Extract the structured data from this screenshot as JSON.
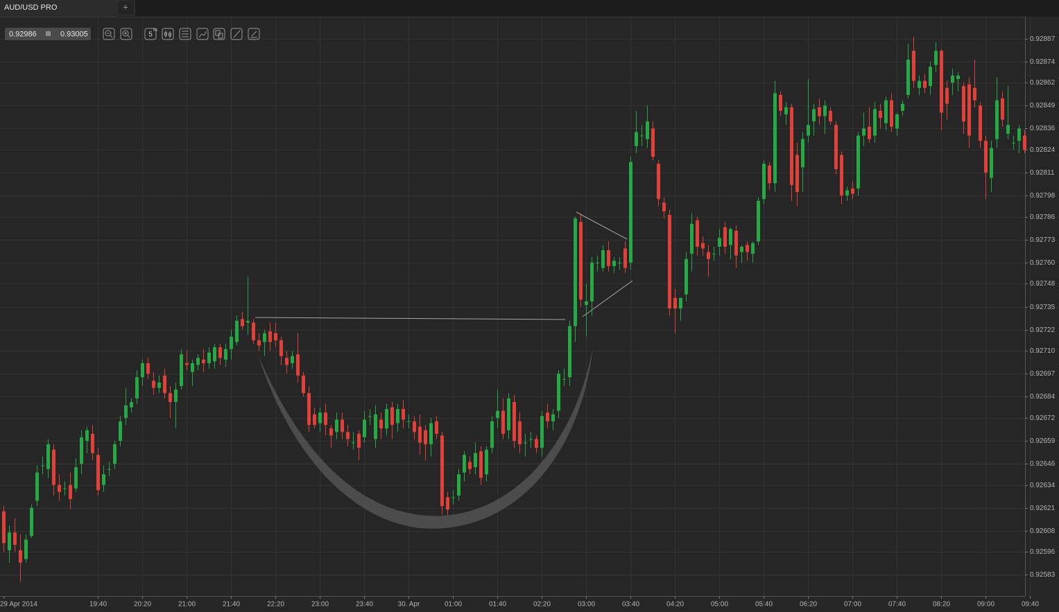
{
  "ui": {
    "tab": "AUD/USD PRO",
    "new_tab": "+",
    "bid": "0.92986",
    "ask": "0.93005",
    "interval": "5",
    "interval_unit": "m"
  },
  "chart_data": {
    "type": "candlestick",
    "up_color": "#27a844",
    "down_color": "#e0423a",
    "grid": true,
    "ylim": [
      0.92571,
      0.92899
    ],
    "yticks": [
      0.92887,
      0.92874,
      0.92862,
      0.92849,
      0.92836,
      0.92824,
      0.92811,
      0.92798,
      0.92786,
      0.92773,
      {
        "value": 0.9276,
        "label": "0.92760"
      },
      0.92748,
      0.92735,
      0.92722,
      {
        "value": 0.9271,
        "label": "0.92710"
      },
      0.92697,
      0.92684,
      0.92672,
      0.92659,
      0.92646,
      0.92634,
      0.92621,
      0.92608,
      0.92596,
      0.92583
    ],
    "categories": [
      "29 Apr 2014",
      null,
      null,
      null,
      null,
      null,
      null,
      null,
      null,
      null,
      null,
      null,
      null,
      null,
      null,
      null,
      null,
      "19:40",
      null,
      null,
      null,
      null,
      null,
      null,
      null,
      "20:20",
      null,
      null,
      null,
      null,
      null,
      null,
      null,
      "21:00",
      null,
      null,
      null,
      null,
      null,
      null,
      null,
      "21:40",
      null,
      null,
      null,
      null,
      null,
      null,
      null,
      "22:20",
      null,
      null,
      null,
      null,
      null,
      null,
      null,
      "23:00",
      null,
      null,
      null,
      null,
      null,
      null,
      null,
      "23:40",
      null,
      null,
      null,
      null,
      null,
      null,
      null,
      "30. Apr",
      null,
      null,
      null,
      null,
      null,
      null,
      null,
      "01:00",
      null,
      null,
      null,
      null,
      null,
      null,
      null,
      "01:40",
      null,
      null,
      null,
      null,
      null,
      null,
      null,
      "02:20",
      null,
      null,
      null,
      null,
      null,
      null,
      null,
      "03:00",
      null,
      null,
      null,
      null,
      null,
      null,
      null,
      "03:40",
      null,
      null,
      null,
      null,
      null,
      null,
      null,
      "04:20",
      null,
      null,
      null,
      null,
      null,
      null,
      null,
      "05:00",
      null,
      null,
      null,
      null,
      null,
      null,
      null,
      "05:40",
      null,
      null,
      null,
      null,
      null,
      null,
      null,
      "06:20",
      null,
      null,
      null,
      null,
      null,
      null,
      null,
      "07:00",
      null,
      null,
      null,
      null,
      null,
      null,
      null,
      "07:40",
      null,
      null,
      null,
      null,
      null,
      null,
      null,
      "08:20",
      null,
      null,
      null,
      null,
      null,
      null,
      null,
      "09:00",
      null,
      null,
      null,
      null,
      null,
      null,
      null,
      "09:40"
    ],
    "candles": [
      [
        0.92619,
        0.92622,
        0.92596,
        0.92601
      ],
      [
        0.92597,
        0.92611,
        0.9259,
        0.92607
      ],
      [
        0.92607,
        0.92615,
        0.92596,
        0.926
      ],
      [
        0.92597,
        0.92606,
        0.92579,
        0.9259
      ],
      [
        0.92592,
        0.92606,
        0.9259,
        0.92603
      ],
      [
        0.92605,
        0.92623,
        0.92604,
        0.92621
      ],
      [
        0.92625,
        0.92645,
        0.92622,
        0.92641
      ],
      [
        0.92645,
        0.9265,
        0.9264,
        0.92645
      ],
      [
        0.92643,
        0.9266,
        0.92638,
        0.92657
      ],
      [
        0.92654,
        0.92657,
        0.92628,
        0.92634
      ],
      [
        0.92634,
        0.9264,
        0.92625,
        0.9263
      ],
      [
        0.92632,
        0.92636,
        0.92628,
        0.92632
      ],
      [
        0.92634,
        0.92641,
        0.9262,
        0.92626
      ],
      [
        0.92632,
        0.92649,
        0.9263,
        0.92644
      ],
      [
        0.92646,
        0.92665,
        0.9264,
        0.92661
      ],
      [
        0.92659,
        0.92667,
        0.92652,
        0.92665
      ],
      [
        0.92663,
        0.92668,
        0.92648,
        0.92652
      ],
      [
        0.92651,
        0.92655,
        0.92628,
        0.92631
      ],
      [
        0.92634,
        0.92645,
        0.9263,
        0.9264
      ],
      [
        0.92643,
        0.92647,
        0.92639,
        0.92643
      ],
      [
        0.92646,
        0.92659,
        0.92643,
        0.92657
      ],
      [
        0.92659,
        0.92673,
        0.92656,
        0.9267
      ],
      [
        0.92672,
        0.92689,
        0.92668,
        0.92679
      ],
      [
        0.92678,
        0.92683,
        0.92675,
        0.92681
      ],
      [
        0.92683,
        0.92699,
        0.9268,
        0.92695
      ],
      [
        0.92695,
        0.92705,
        0.9269,
        0.92703
      ],
      [
        0.92703,
        0.92706,
        0.92694,
        0.92697
      ],
      [
        0.92693,
        0.92698,
        0.92685,
        0.92689
      ],
      [
        0.92689,
        0.92696,
        0.92686,
        0.92692
      ],
      [
        0.92696,
        0.927,
        0.92683,
        0.92686
      ],
      [
        0.92686,
        0.9269,
        0.92672,
        0.92681
      ],
      [
        0.92681,
        0.92692,
        0.92666,
        0.92688
      ],
      [
        0.9269,
        0.92711,
        0.92688,
        0.92708
      ],
      [
        0.92703,
        0.9271,
        0.92699,
        0.92702
      ],
      [
        0.92698,
        0.92705,
        0.9269,
        0.92703
      ],
      [
        0.92702,
        0.92708,
        0.92699,
        0.92706
      ],
      [
        0.92705,
        0.92711,
        0.92698,
        0.92703
      ],
      [
        0.92703,
        0.92712,
        0.927,
        0.92709
      ],
      [
        0.92704,
        0.92714,
        0.927,
        0.92712
      ],
      [
        0.92712,
        0.92714,
        0.92702,
        0.92706
      ],
      [
        0.92705,
        0.92714,
        0.92701,
        0.92711
      ],
      [
        0.92711,
        0.92722,
        0.92705,
        0.92718
      ],
      [
        0.92715,
        0.9273,
        0.92713,
        0.92727
      ],
      [
        0.92728,
        0.92732,
        0.92722,
        0.92724
      ],
      [
        0.92726,
        0.92752,
        0.92719,
        0.92727
      ],
      [
        0.92726,
        0.92728,
        0.92714,
        0.92716
      ],
      [
        0.92716,
        0.9272,
        0.9271,
        0.92713
      ],
      [
        0.92715,
        0.92722,
        0.92707,
        0.9272
      ],
      [
        0.92721,
        0.92726,
        0.9271,
        0.92715
      ],
      [
        0.9272,
        0.92726,
        0.92712,
        0.92716
      ],
      [
        0.92716,
        0.92718,
        0.92702,
        0.92707
      ],
      [
        0.92706,
        0.9271,
        0.92697,
        0.92702
      ],
      [
        0.92703,
        0.9271,
        0.927,
        0.92707
      ],
      [
        0.92708,
        0.9272,
        0.92692,
        0.92696
      ],
      [
        0.92696,
        0.92698,
        0.92684,
        0.92686
      ],
      [
        0.92686,
        0.9269,
        0.92664,
        0.92668
      ],
      [
        0.92674,
        0.92678,
        0.92666,
        0.92668
      ],
      [
        0.92669,
        0.92678,
        0.92664,
        0.92675
      ],
      [
        0.92675,
        0.9268,
        0.92662,
        0.92668
      ],
      [
        0.92666,
        0.92668,
        0.92655,
        0.92662
      ],
      [
        0.92664,
        0.92675,
        0.9266,
        0.92671
      ],
      [
        0.92671,
        0.92675,
        0.9266,
        0.92664
      ],
      [
        0.92664,
        0.92668,
        0.92656,
        0.9266
      ],
      [
        0.92658,
        0.92664,
        0.92654,
        0.92658
      ],
      [
        0.92663,
        0.92665,
        0.92648,
        0.92655
      ],
      [
        0.92661,
        0.92676,
        0.92658,
        0.92671
      ],
      [
        0.92673,
        0.92677,
        0.92668,
        0.92673
      ],
      [
        0.9266,
        0.92679,
        0.92655,
        0.92674
      ],
      [
        0.92671,
        0.92675,
        0.9266,
        0.92666
      ],
      [
        0.92666,
        0.9268,
        0.92662,
        0.92677
      ],
      [
        0.92678,
        0.92681,
        0.9266,
        0.92668
      ],
      [
        0.92669,
        0.9268,
        0.92664,
        0.92677
      ],
      [
        0.92677,
        0.92682,
        0.92666,
        0.92671
      ],
      [
        0.9267,
        0.92674,
        0.92666,
        0.9267
      ],
      [
        0.9267,
        0.92673,
        0.9266,
        0.92664
      ],
      [
        0.92667,
        0.92674,
        0.92651,
        0.92658
      ],
      [
        0.92665,
        0.92668,
        0.92648,
        0.92657
      ],
      [
        0.92657,
        0.92672,
        0.9265,
        0.92669
      ],
      [
        0.9267,
        0.92673,
        0.9266,
        0.92663
      ],
      [
        0.92662,
        0.92664,
        0.92617,
        0.92622
      ],
      [
        0.92627,
        0.9263,
        0.92617,
        0.9262
      ],
      [
        0.92627,
        0.92631,
        0.92623,
        0.92627
      ],
      [
        0.92628,
        0.92643,
        0.92625,
        0.9264
      ],
      [
        0.92641,
        0.92653,
        0.92636,
        0.92651
      ],
      [
        0.92647,
        0.9265,
        0.9264,
        0.92643
      ],
      [
        0.92644,
        0.92658,
        0.9264,
        0.92652
      ],
      [
        0.92653,
        0.92656,
        0.92634,
        0.92638
      ],
      [
        0.9264,
        0.92656,
        0.92636,
        0.92654
      ],
      [
        0.92655,
        0.92673,
        0.92652,
        0.9267
      ],
      [
        0.92672,
        0.92688,
        0.92666,
        0.92676
      ],
      [
        0.92676,
        0.92683,
        0.9266,
        0.92663
      ],
      [
        0.92665,
        0.92686,
        0.9266,
        0.92683
      ],
      [
        0.92681,
        0.92685,
        0.92655,
        0.92659
      ],
      [
        0.9267,
        0.92675,
        0.92652,
        0.92657
      ],
      [
        0.92658,
        0.92663,
        0.9265,
        0.92658
      ],
      [
        0.9266,
        0.92664,
        0.92655,
        0.9266
      ],
      [
        0.9266,
        0.92662,
        0.92652,
        0.92655
      ],
      [
        0.92655,
        0.92676,
        0.9265,
        0.92673
      ],
      [
        0.92675,
        0.9268,
        0.92666,
        0.9267
      ],
      [
        0.9267,
        0.92677,
        0.92665,
        0.92674
      ],
      [
        0.92676,
        0.92699,
        0.92672,
        0.92697
      ],
      [
        0.92694,
        0.927,
        0.9269,
        0.92694
      ],
      [
        0.92695,
        0.92727,
        0.9269,
        0.92724
      ],
      [
        0.92724,
        0.92786,
        0.92715,
        0.92785
      ],
      [
        0.92783,
        0.92788,
        0.92735,
        0.92739
      ],
      [
        0.92736,
        0.92748,
        0.92718,
        0.92738
      ],
      [
        0.92738,
        0.92763,
        0.9273,
        0.9276
      ],
      [
        0.9276,
        0.92764,
        0.92755,
        0.9276
      ],
      [
        0.92757,
        0.9277,
        0.92755,
        0.92767
      ],
      [
        0.92767,
        0.92772,
        0.92755,
        0.92758
      ],
      [
        0.92758,
        0.92763,
        0.92754,
        0.92761
      ],
      [
        0.9276,
        0.92763,
        0.92756,
        0.9276
      ],
      [
        0.92768,
        0.92772,
        0.92754,
        0.92757
      ],
      [
        0.9276,
        0.9282,
        0.92756,
        0.92817
      ],
      [
        0.92826,
        0.92846,
        0.92822,
        0.92834
      ],
      [
        0.92832,
        0.92838,
        0.92826,
        0.92832
      ],
      [
        0.9283,
        0.92849,
        0.92825,
        0.9284
      ],
      [
        0.92836,
        0.9284,
        0.92818,
        0.9282
      ],
      [
        0.92816,
        0.92818,
        0.92792,
        0.92796
      ],
      [
        0.92794,
        0.92797,
        0.92785,
        0.92789
      ],
      [
        0.92787,
        0.9279,
        0.9273,
        0.92734
      ],
      [
        0.9274,
        0.92745,
        0.9272,
        0.92734
      ],
      [
        0.92734,
        0.9274,
        0.92727,
        0.9274
      ],
      [
        0.92742,
        0.92766,
        0.92738,
        0.92762
      ],
      [
        0.92765,
        0.92788,
        0.92755,
        0.92782
      ],
      [
        0.92784,
        0.92786,
        0.92764,
        0.92769
      ],
      [
        0.92771,
        0.92775,
        0.92764,
        0.92768
      ],
      [
        0.92766,
        0.9277,
        0.92752,
        0.92762
      ],
      [
        0.92765,
        0.92769,
        0.92761,
        0.92765
      ],
      [
        0.92769,
        0.92779,
        0.92764,
        0.92774
      ],
      [
        0.9278,
        0.92783,
        0.92765,
        0.92769
      ],
      [
        0.9277,
        0.9278,
        0.92762,
        0.92779
      ],
      [
        0.92778,
        0.92781,
        0.92757,
        0.92764
      ],
      [
        0.92766,
        0.9277,
        0.9276,
        0.92769
      ],
      [
        0.9277,
        0.92772,
        0.92761,
        0.92766
      ],
      [
        0.92765,
        0.92772,
        0.9276,
        0.92771
      ],
      [
        0.92772,
        0.92797,
        0.9277,
        0.92795
      ],
      [
        0.92796,
        0.92818,
        0.92793,
        0.92816
      ],
      [
        0.92815,
        0.92817,
        0.92801,
        0.92805
      ],
      [
        0.92805,
        0.92863,
        0.928,
        0.92856
      ],
      [
        0.92855,
        0.92857,
        0.92843,
        0.92846
      ],
      [
        0.92844,
        0.92851,
        0.92838,
        0.92848
      ],
      [
        0.92848,
        0.9285,
        0.92795,
        0.92804
      ],
      [
        0.92821,
        0.92828,
        0.92792,
        0.928
      ],
      [
        0.92814,
        0.92834,
        0.928,
        0.9283
      ],
      [
        0.92832,
        0.92864,
        0.92828,
        0.92838
      ],
      [
        0.9284,
        0.9285,
        0.92832,
        0.92847
      ],
      [
        0.92848,
        0.92853,
        0.92838,
        0.92843
      ],
      [
        0.92843,
        0.92852,
        0.92833,
        0.92849
      ],
      [
        0.92846,
        0.92848,
        0.92838,
        0.9284
      ],
      [
        0.92838,
        0.9284,
        0.9281,
        0.92813
      ],
      [
        0.92821,
        0.92823,
        0.92793,
        0.92798
      ],
      [
        0.92798,
        0.92803,
        0.92795,
        0.92801
      ],
      [
        0.92802,
        0.92806,
        0.92796,
        0.92799
      ],
      [
        0.92802,
        0.92834,
        0.92798,
        0.92832
      ],
      [
        0.92832,
        0.92845,
        0.92826,
        0.92836
      ],
      [
        0.92837,
        0.92848,
        0.92828,
        0.9283
      ],
      [
        0.92832,
        0.92851,
        0.92828,
        0.92847
      ],
      [
        0.92846,
        0.9285,
        0.92836,
        0.92842
      ],
      [
        0.92839,
        0.92854,
        0.92835,
        0.92852
      ],
      [
        0.92852,
        0.92856,
        0.92834,
        0.92837
      ],
      [
        0.92836,
        0.92845,
        0.92832,
        0.92844
      ],
      [
        0.92846,
        0.92852,
        0.92843,
        0.9285
      ],
      [
        0.92855,
        0.92884,
        0.92853,
        0.92875
      ],
      [
        0.9288,
        0.92888,
        0.92859,
        0.92863
      ],
      [
        0.92859,
        0.92866,
        0.92855,
        0.92863
      ],
      [
        0.92863,
        0.92867,
        0.92856,
        0.92859
      ],
      [
        0.9286,
        0.92874,
        0.92855,
        0.92871
      ],
      [
        0.92872,
        0.92885,
        0.92868,
        0.9288
      ],
      [
        0.9288,
        0.92881,
        0.92835,
        0.92845
      ],
      [
        0.92859,
        0.92863,
        0.92841,
        0.9285
      ],
      [
        0.92862,
        0.9287,
        0.92855,
        0.92866
      ],
      [
        0.92864,
        0.92868,
        0.92857,
        0.92866
      ],
      [
        0.9286,
        0.92862,
        0.92833,
        0.9284
      ],
      [
        0.92861,
        0.92865,
        0.92825,
        0.92832
      ],
      [
        0.92859,
        0.92875,
        0.92848,
        0.92852
      ],
      [
        0.92849,
        0.92851,
        0.92825,
        0.92829
      ],
      [
        0.92829,
        0.92832,
        0.92796,
        0.92811
      ],
      [
        0.92808,
        0.92829,
        0.928,
        0.92825
      ],
      [
        0.9283,
        0.92865,
        0.92825,
        0.92852
      ],
      [
        0.92853,
        0.92857,
        0.92837,
        0.92841
      ],
      [
        0.92833,
        0.9286,
        0.9283,
        0.92838
      ],
      [
        0.92828,
        0.92832,
        0.92824,
        0.92828
      ],
      [
        0.92829,
        0.92838,
        0.92822,
        0.92836
      ],
      [
        0.92832,
        0.92835,
        0.92822,
        0.92824
      ],
      null
    ]
  }
}
